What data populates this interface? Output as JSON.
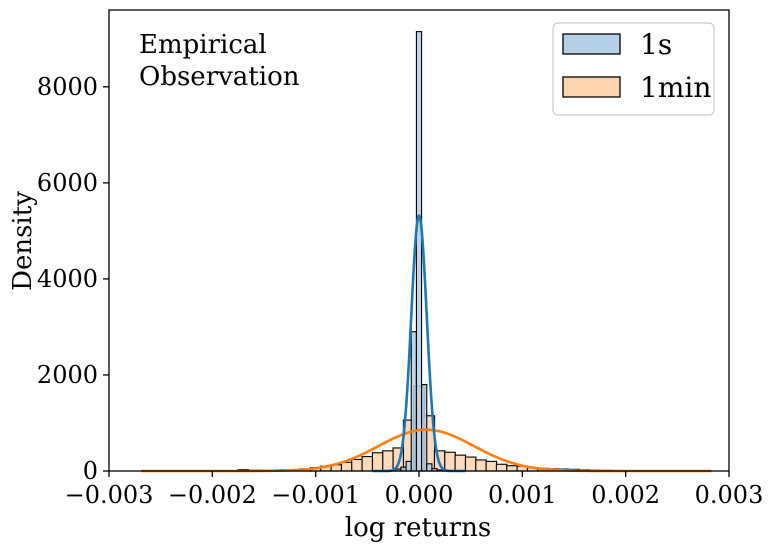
{
  "chart_data": {
    "type": "histogram",
    "xlabel": "log returns",
    "ylabel": "Density",
    "xlim": [
      -0.003,
      0.003
    ],
    "ylim": [
      0,
      9600
    ],
    "xticks": [
      -0.003,
      -0.002,
      -0.001,
      0.0,
      0.001,
      0.002,
      0.003
    ],
    "xtick_labels": [
      "−0.003",
      "−0.002",
      "−0.001",
      "0.000",
      "0.001",
      "0.002",
      "0.003"
    ],
    "yticks": [
      0,
      2000,
      4000,
      6000,
      8000
    ],
    "ytick_labels": [
      "0",
      "2000",
      "4000",
      "6000",
      "8000"
    ],
    "annotation": [
      "Empirical",
      "Observation"
    ],
    "legend": {
      "position": "top-right",
      "entries": [
        "1s",
        "1min"
      ]
    },
    "series": [
      {
        "name": "1s",
        "fill": "#b4cfe6",
        "kde_color": "#1f77b4",
        "bin_width": 5e-05,
        "bins": [
          [
            -0.00025,
            20
          ],
          [
            -0.0002,
            40
          ],
          [
            -0.00015,
            80
          ],
          [
            -0.0001,
            200
          ],
          [
            -5e-05,
            2900
          ],
          [
            0.0,
            9150
          ],
          [
            5e-05,
            1800
          ],
          [
            0.0001,
            150
          ],
          [
            0.00015,
            50
          ],
          [
            0.0002,
            20
          ],
          [
            0.00025,
            10
          ]
        ],
        "kde": {
          "mean": 0.0,
          "std": 7.5e-05,
          "peak": 5320
        }
      },
      {
        "name": "1min",
        "fill": "#fdd3b0",
        "kde_color": "#ff7f0e",
        "bin_width": 0.000102,
        "bins": [
          [
            -0.0017,
            30
          ],
          [
            -0.0016,
            20
          ],
          [
            -0.0015,
            15
          ],
          [
            -0.0014,
            20
          ],
          [
            -0.0013,
            25
          ],
          [
            -0.0012,
            30
          ],
          [
            -0.0011,
            45
          ],
          [
            -0.001,
            70
          ],
          [
            -0.0009,
            100
          ],
          [
            -0.0008,
            130
          ],
          [
            -0.0007,
            180
          ],
          [
            -0.0006,
            240
          ],
          [
            -0.0005,
            300
          ],
          [
            -0.0004,
            380
          ],
          [
            -0.0003,
            420
          ],
          [
            -0.0002,
            480
          ],
          [
            -0.0001,
            1060
          ],
          [
            0.0,
            1770
          ],
          [
            0.0001,
            1150
          ],
          [
            0.0002,
            420
          ],
          [
            0.0003,
            390
          ],
          [
            0.0004,
            330
          ],
          [
            0.0005,
            290
          ],
          [
            0.0006,
            230
          ],
          [
            0.0007,
            200
          ],
          [
            0.0008,
            140
          ],
          [
            0.0009,
            110
          ],
          [
            0.001,
            100
          ],
          [
            0.0011,
            70
          ],
          [
            0.0012,
            55
          ],
          [
            0.0013,
            45
          ],
          [
            0.0014,
            40
          ],
          [
            0.0015,
            35
          ],
          [
            0.0016,
            25
          ],
          [
            0.0017,
            20
          ],
          [
            0.0018,
            15
          ],
          [
            0.0019,
            10
          ],
          [
            0.002,
            8
          ],
          [
            0.0021,
            6
          ],
          [
            0.0022,
            5
          ],
          [
            0.0023,
            4
          ]
        ],
        "kde": {
          "mean": 7e-05,
          "std": 0.00046,
          "peak": 860
        }
      }
    ]
  }
}
